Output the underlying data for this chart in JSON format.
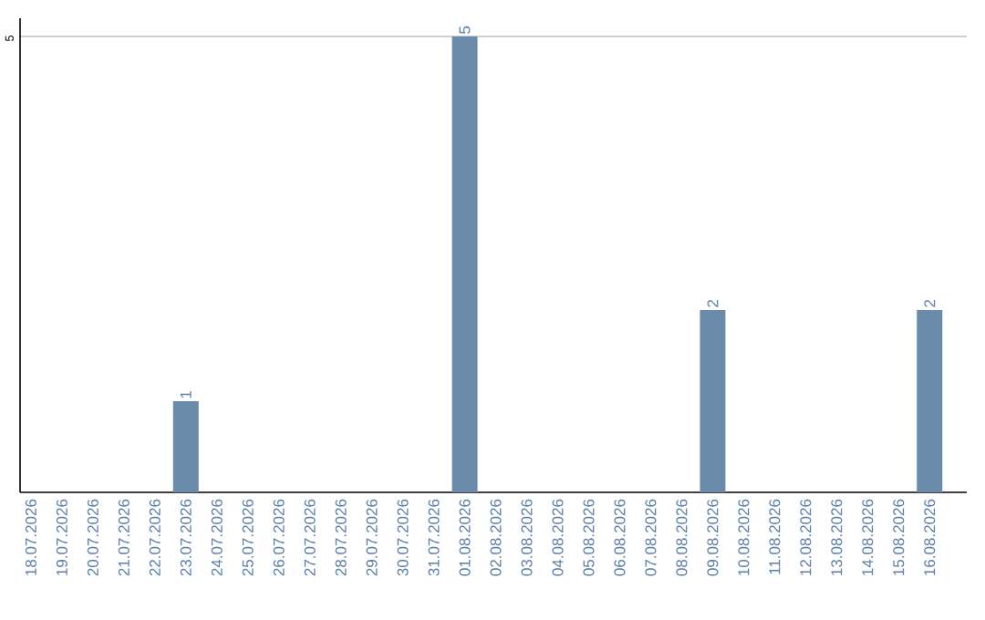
{
  "chart_data": {
    "type": "bar",
    "categories": [
      "18.07.2026",
      "19.07.2026",
      "20.07.2026",
      "21.07.2026",
      "22.07.2026",
      "23.07.2026",
      "24.07.2026",
      "25.07.2026",
      "26.07.2026",
      "27.07.2026",
      "28.07.2026",
      "29.07.2026",
      "30.07.2026",
      "31.07.2026",
      "01.08.2026",
      "02.08.2026",
      "03.08.2026",
      "04.08.2026",
      "05.08.2026",
      "06.08.2026",
      "07.08.2026",
      "08.08.2026",
      "09.08.2026",
      "10.08.2026",
      "11.08.2026",
      "12.08.2026",
      "13.08.2026",
      "14.08.2026",
      "15.08.2026",
      "16.08.2026"
    ],
    "values": [
      0,
      0,
      0,
      0,
      0,
      1,
      0,
      0,
      0,
      0,
      0,
      0,
      0,
      0,
      5,
      0,
      0,
      0,
      0,
      0,
      0,
      0,
      2,
      0,
      0,
      0,
      0,
      0,
      0,
      2
    ],
    "value_labels": [
      null,
      null,
      null,
      null,
      null,
      "1",
      null,
      null,
      null,
      null,
      null,
      null,
      null,
      null,
      "5",
      null,
      null,
      null,
      null,
      null,
      null,
      null,
      "2",
      null,
      null,
      null,
      null,
      null,
      null,
      "2"
    ],
    "color": "#6a8caa",
    "ylim": [
      0,
      5.2
    ],
    "yticks": [
      5
    ],
    "grid": "y"
  }
}
